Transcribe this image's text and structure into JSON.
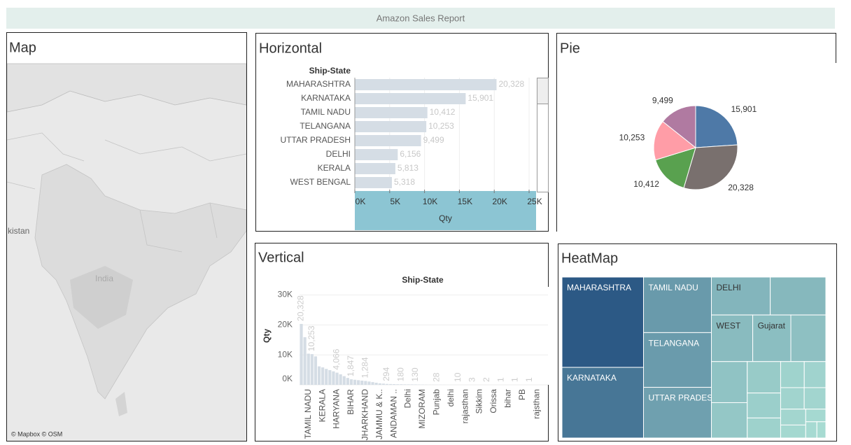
{
  "dashboard": {
    "title": "Amazon Sales Report"
  },
  "map": {
    "title": "Map",
    "labels": [
      "kistan",
      "India"
    ],
    "attribution": "© Mapbox © OSM"
  },
  "chart_data": [
    {
      "type": "bar",
      "orientation": "horizontal",
      "title": "Horizontal",
      "category_header": "Ship-State",
      "x_label": "Qty",
      "categories": [
        "MAHARASHTRA",
        "KARNATAKA",
        "TAMIL NADU",
        "TELANGANA",
        "UTTAR PRADESH",
        "DELHI",
        "KERALA",
        "WEST BENGAL"
      ],
      "values": [
        20328,
        15901,
        10412,
        10253,
        9499,
        6156,
        5813,
        5318
      ],
      "value_labels": [
        "20,328",
        "15,901",
        "10,412",
        "10,253",
        "9,499",
        "6,156",
        "5,813",
        "5,318"
      ],
      "color": "#d5dde5",
      "xlim": [
        0,
        26000
      ],
      "xticks": [
        {
          "value": 0,
          "label": "0K"
        },
        {
          "value": 5000,
          "label": "5K"
        },
        {
          "value": 10000,
          "label": "10K"
        },
        {
          "value": 15000,
          "label": "15K"
        },
        {
          "value": 20000,
          "label": "20K"
        },
        {
          "value": 25000,
          "label": "25K"
        }
      ],
      "grid": true
    },
    {
      "type": "pie",
      "title": "Pie",
      "values": [
        15901,
        20328,
        10412,
        10253,
        9499
      ],
      "value_labels": [
        "15,901",
        "20,328",
        "10,412",
        "10,253",
        "9,499"
      ],
      "colors": [
        "#4e79a7",
        "#79706e",
        "#59a14f",
        "#ff9da7",
        "#b07aa1"
      ]
    },
    {
      "type": "bar",
      "orientation": "vertical",
      "title": "Vertical",
      "category_header": "Ship-State",
      "y_label": "Qty",
      "categories": [
        null,
        null,
        "TAMIL NADU",
        null,
        null,
        null,
        "KERALA",
        null,
        null,
        null,
        "HARYANA",
        null,
        null,
        null,
        "BIHAR",
        null,
        null,
        null,
        "JHARKHAND",
        null,
        null,
        null,
        "JAMMU & K..",
        null,
        null,
        null,
        "ANDAMAN ..",
        null,
        null,
        null,
        "Delhi",
        null,
        null,
        null,
        "MIZORAM",
        null,
        null,
        null,
        "Punjab",
        null,
        null,
        null,
        "delhi",
        null,
        null,
        null,
        "rajasthan",
        null,
        null,
        null,
        "Sikkim",
        null,
        null,
        null,
        "Orissa",
        null,
        null,
        null,
        "bihar",
        null,
        null,
        null,
        "PB",
        null,
        null,
        null,
        "rajsthan",
        null
      ],
      "values": [
        20328,
        15901,
        10412,
        10253,
        9499,
        6156,
        5813,
        5318,
        4900,
        4500,
        4066,
        3500,
        2900,
        2300,
        1847,
        1700,
        1550,
        1400,
        1284,
        1100,
        900,
        700,
        500,
        400,
        294,
        260,
        230,
        200,
        180,
        160,
        150,
        140,
        130,
        100,
        80,
        60,
        45,
        35,
        28,
        25,
        20,
        15,
        12,
        11,
        10,
        8,
        6,
        4,
        3,
        3,
        3,
        2,
        2,
        2,
        2,
        1,
        1,
        1,
        1,
        1,
        1,
        1,
        1,
        1,
        1,
        1,
        1,
        1
      ],
      "value_labels": [
        "20,328",
        null,
        null,
        "10,253",
        null,
        null,
        null,
        null,
        null,
        null,
        "4,066",
        null,
        null,
        null,
        "1,847",
        null,
        null,
        null,
        "1,284",
        null,
        null,
        null,
        null,
        null,
        "294",
        null,
        null,
        null,
        "180",
        null,
        null,
        null,
        "130",
        null,
        null,
        null,
        null,
        null,
        "28",
        null,
        null,
        null,
        null,
        null,
        "10",
        null,
        null,
        null,
        "3",
        null,
        null,
        null,
        "2",
        null,
        null,
        null,
        "1",
        null,
        null,
        null,
        "1",
        null,
        null,
        null,
        "1",
        null,
        null,
        null
      ],
      "color": "#d5dde5",
      "ylim": [
        0,
        32000
      ],
      "yticks": [
        {
          "value": 0,
          "label": "0K"
        },
        {
          "value": 10000,
          "label": "10K"
        },
        {
          "value": 20000,
          "label": "20K"
        },
        {
          "value": 30000,
          "label": "30K"
        }
      ],
      "grid": true
    },
    {
      "type": "treemap",
      "title": "HeatMap",
      "categories": [
        "MAHARASHTRA",
        "KARNATAKA",
        "TAMIL NADU",
        "TELANGANA",
        "UTTAR PRADESH",
        "DELHI",
        null,
        "WEST",
        "Gujarat",
        null,
        null,
        null,
        null,
        null,
        null,
        null,
        null,
        null,
        null,
        null,
        null,
        null,
        null,
        null
      ],
      "values": [
        20328,
        15901,
        10412,
        10253,
        9499,
        6156,
        5813,
        5318,
        4900,
        4500,
        4066,
        3500,
        2900,
        2300,
        1847,
        1700,
        1550,
        1400,
        1284,
        1100,
        900,
        700,
        500,
        400
      ],
      "color_range": [
        "#a7dbd2",
        "#2c5985"
      ]
    }
  ]
}
